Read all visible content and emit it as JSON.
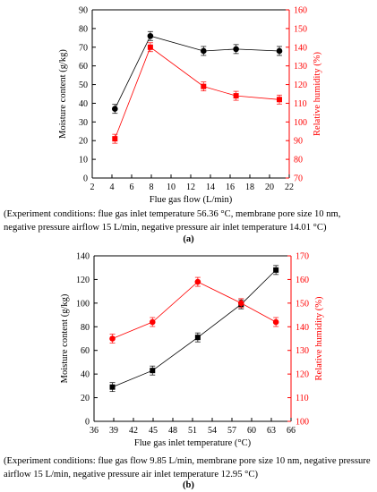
{
  "chart_data": [
    {
      "type": "line",
      "panel": "(a)",
      "xlabel": "Flue gas flow (L/min)",
      "ylabel": "Moisture content (g/kg)",
      "y2label": "Relative humidity (%)",
      "xlim": [
        2,
        22
      ],
      "xticks": [
        2,
        4,
        6,
        8,
        10,
        12,
        14,
        16,
        18,
        20,
        22
      ],
      "ylim": [
        0,
        90
      ],
      "yticks": [
        0,
        10,
        20,
        30,
        40,
        50,
        60,
        70,
        80,
        90
      ],
      "y2lim": [
        70,
        160
      ],
      "y2ticks": [
        70,
        80,
        90,
        100,
        110,
        120,
        130,
        140,
        150,
        160
      ],
      "grid": false,
      "series": [
        {
          "axis": "left",
          "marker": "circle",
          "color": "#000000",
          "x": [
            4.3,
            7.9,
            13.3,
            16.6,
            21.0
          ],
          "y": [
            37,
            76,
            68,
            69,
            68
          ]
        },
        {
          "axis": "right",
          "marker": "square",
          "color": "#ff0000",
          "x": [
            4.3,
            7.9,
            13.3,
            16.6,
            21.0
          ],
          "y": [
            91,
            140,
            119,
            114,
            112
          ]
        }
      ],
      "caption": "(Experiment conditions: flue gas inlet temperature 56.36 °C, membrane pore size 10 nm, negative pressure airflow 15 L/min, negative pressure air inlet temperature 14.01 °C)"
    },
    {
      "type": "line",
      "panel": "(b)",
      "xlabel": "Flue gas inlet temperature (°C)",
      "ylabel": "Moisture content (g/kg)",
      "y2label": "Relative humidity (%)",
      "xlim": [
        36,
        66
      ],
      "xticks": [
        36,
        39,
        42,
        45,
        48,
        51,
        54,
        57,
        60,
        63,
        66
      ],
      "ylim": [
        0,
        140
      ],
      "yticks": [
        0,
        20,
        40,
        60,
        80,
        100,
        120,
        140
      ],
      "y2lim": [
        100,
        170
      ],
      "y2ticks": [
        100,
        110,
        120,
        130,
        140,
        150,
        160,
        170
      ],
      "grid": false,
      "series": [
        {
          "axis": "left",
          "marker": "square",
          "color": "#000000",
          "x": [
            38.8,
            44.9,
            51.8,
            58.4,
            63.7
          ],
          "y": [
            29,
            43,
            71,
            99,
            128
          ]
        },
        {
          "axis": "right",
          "marker": "circle",
          "color": "#ff0000",
          "x": [
            38.8,
            44.9,
            51.8,
            58.4,
            63.7
          ],
          "y": [
            135,
            142,
            159,
            150,
            142
          ]
        }
      ],
      "caption": "(Experiment conditions: flue gas flow 9.85 L/min, membrane pore size 10 nm, negative pressure airflow 15 L/min, negative pressure air inlet temperature 12.95 °C)"
    }
  ],
  "colors": {
    "primary_axis": "#000000",
    "secondary_axis": "#ff0000"
  }
}
